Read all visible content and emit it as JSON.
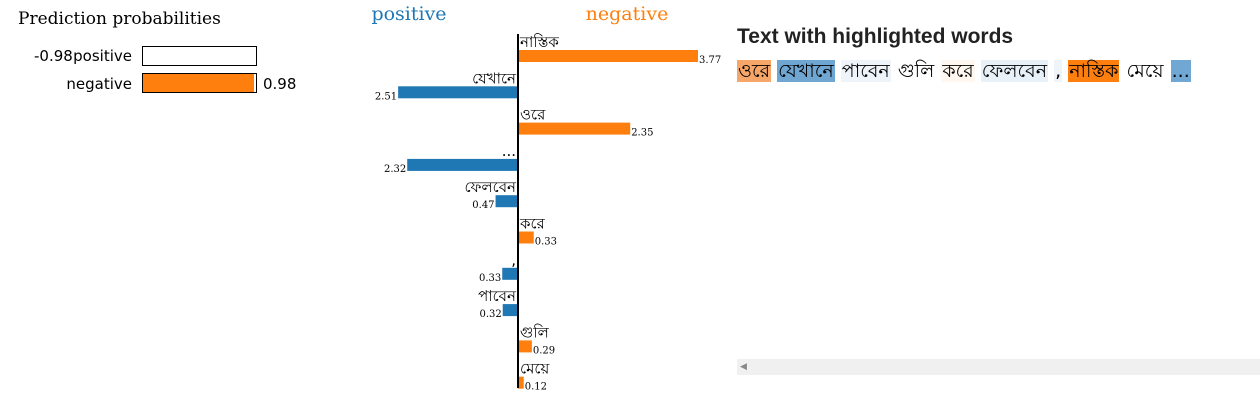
{
  "prediction": {
    "title": "Prediction probabilities",
    "rows": [
      {
        "label": "positive",
        "value": -0.98,
        "value_text": "-0.98",
        "fill": 0,
        "color": "#1f77b4"
      },
      {
        "label": "negative",
        "value": 0.98,
        "value_text": "0.98",
        "fill": 0.98,
        "color": "#ff7f0e"
      }
    ]
  },
  "chart_data": {
    "type": "bar",
    "orientation": "horizontal-diverging",
    "class_labels": {
      "left": {
        "text": "positive",
        "color": "#1f77b4"
      },
      "right": {
        "text": "negative",
        "color": "#ff7f0e"
      }
    },
    "features": [
      {
        "word": "নাস্তিক",
        "value": 3.77,
        "label": "3.77",
        "side": "negative"
      },
      {
        "word": "যেখানে",
        "value": 2.51,
        "label": "2.51",
        "side": "positive"
      },
      {
        "word": "ওরে",
        "value": 2.35,
        "label": "2.35",
        "side": "negative"
      },
      {
        "word": "...",
        "value": 2.32,
        "label": "2.32",
        "side": "positive"
      },
      {
        "word": "ফেলবেন",
        "value": 0.47,
        "label": "0.47",
        "side": "positive"
      },
      {
        "word": "করে",
        "value": 0.33,
        "label": "0.33",
        "side": "negative"
      },
      {
        "word": ",",
        "value": 0.33,
        "label": "0.33",
        "side": "positive"
      },
      {
        "word": "পাবেন",
        "value": 0.32,
        "label": "0.32",
        "side": "positive"
      },
      {
        "word": "গুলি",
        "value": 0.29,
        "label": "0.29",
        "side": "negative"
      },
      {
        "word": "মেয়ে",
        "value": 0.12,
        "label": "0.12",
        "side": "negative"
      }
    ],
    "colors": {
      "positive": "#1f77b4",
      "negative": "#ff7f0e"
    },
    "xlim": [
      -3.77,
      3.77
    ]
  },
  "highlighted_text": {
    "title": "Text with highlighted words",
    "tokens": [
      {
        "text": "ওরে",
        "bg": "#f5a668"
      },
      {
        "text": "যেখানে",
        "bg": "#6fa6d2"
      },
      {
        "text": "পাবেন",
        "bg": "#eef4f9"
      },
      {
        "text": "গুলি",
        "bg": "#ffffff"
      },
      {
        "text": "করে",
        "bg": "#fff7f0"
      },
      {
        "text": "ফেলবেন",
        "bg": "#e9f1f8"
      },
      {
        "text": ",",
        "bg": "#eef4f9"
      },
      {
        "text": "নাস্তিক",
        "bg": "#ff7f0e"
      },
      {
        "text": "মেয়ে",
        "bg": "#ffffff"
      },
      {
        "text": "...",
        "bg": "#70a7d3"
      }
    ]
  }
}
